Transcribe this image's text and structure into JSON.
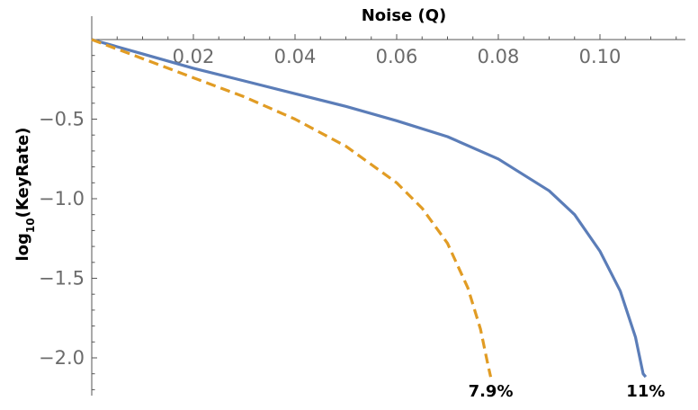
{
  "chart_data": {
    "type": "line",
    "xlabel": "Noise (Q)",
    "ylabel_main": "log",
    "ylabel_sub": "10",
    "ylabel_rest": "(KeyRate)",
    "xlim": [
      0,
      0.1165
    ],
    "ylim": [
      -2.22,
      0.02
    ],
    "x_ticks": [
      0.02,
      0.04,
      0.06,
      0.08,
      0.1
    ],
    "x_tick_labels": [
      "0.02",
      "0.04",
      "0.06",
      "0.08",
      "0.10"
    ],
    "y_ticks": [
      -0.5,
      -1.0,
      -1.5,
      -2.0
    ],
    "y_tick_labels": [
      "−0.5",
      "−1.0",
      "−1.5",
      "−2.0"
    ],
    "grid": false,
    "series": [
      {
        "style": "solid",
        "color": "#5b7db8",
        "points": [
          [
            0.0,
            0.0
          ],
          [
            0.005,
            -0.045
          ],
          [
            0.01,
            -0.09
          ],
          [
            0.02,
            -0.18
          ],
          [
            0.03,
            -0.26
          ],
          [
            0.04,
            -0.34
          ],
          [
            0.05,
            -0.42
          ],
          [
            0.06,
            -0.51
          ],
          [
            0.07,
            -0.61
          ],
          [
            0.08,
            -0.75
          ],
          [
            0.09,
            -0.95
          ],
          [
            0.095,
            -1.1
          ],
          [
            0.1,
            -1.33
          ],
          [
            0.104,
            -1.58
          ],
          [
            0.107,
            -1.87
          ],
          [
            0.1085,
            -2.1
          ],
          [
            0.109,
            -2.12
          ]
        ]
      },
      {
        "style": "dashed",
        "color": "#e19c24",
        "points": [
          [
            0.0,
            0.0
          ],
          [
            0.005,
            -0.06
          ],
          [
            0.01,
            -0.12
          ],
          [
            0.02,
            -0.24
          ],
          [
            0.03,
            -0.36
          ],
          [
            0.04,
            -0.5
          ],
          [
            0.05,
            -0.67
          ],
          [
            0.06,
            -0.9
          ],
          [
            0.065,
            -1.06
          ],
          [
            0.07,
            -1.28
          ],
          [
            0.074,
            -1.56
          ],
          [
            0.0765,
            -1.82
          ],
          [
            0.078,
            -2.05
          ],
          [
            0.0785,
            -2.12
          ]
        ]
      }
    ],
    "annotations": [
      {
        "text": "7.9%",
        "x": 0.0785
      },
      {
        "text": "11%",
        "x": 0.109
      }
    ]
  }
}
